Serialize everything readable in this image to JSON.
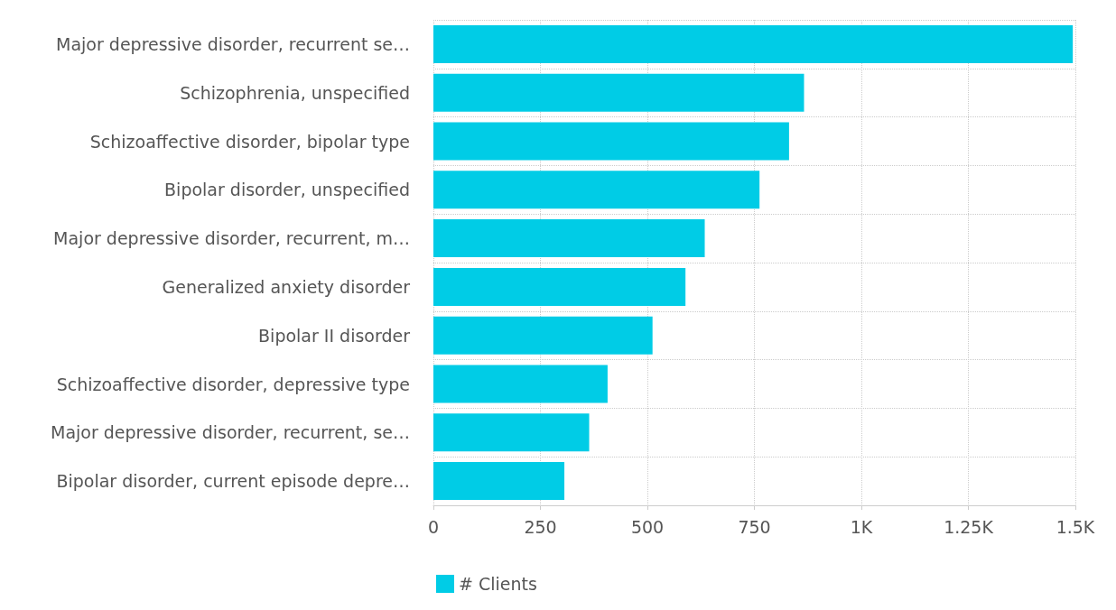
{
  "chart_data": {
    "type": "bar",
    "orientation": "horizontal",
    "categories": [
      "Major depressive disorder, recurrent se…",
      "Schizophrenia, unspecified",
      "Schizoaffective disorder, bipolar type",
      "Bipolar disorder, unspecified",
      "Major depressive disorder, recurrent, m…",
      "Generalized anxiety disorder",
      "Bipolar II disorder",
      "Schizoaffective disorder, depressive type",
      "Major depressive disorder, recurrent, se…",
      "Bipolar disorder, current episode depre…"
    ],
    "series": [
      {
        "name": "# Clients",
        "color": "#00cce6",
        "values": [
          1494,
          866,
          831,
          762,
          634,
          589,
          512,
          407,
          364,
          306
        ]
      }
    ],
    "xlim": [
      0,
      1500
    ],
    "xticks": [
      0,
      250,
      500,
      750,
      {
        "value": 1000,
        "label": "1K"
      },
      {
        "value": 1250,
        "label": "1.25K"
      },
      {
        "value": 1500,
        "label": "1.5K"
      }
    ],
    "grid": true,
    "legend": "bottom"
  }
}
